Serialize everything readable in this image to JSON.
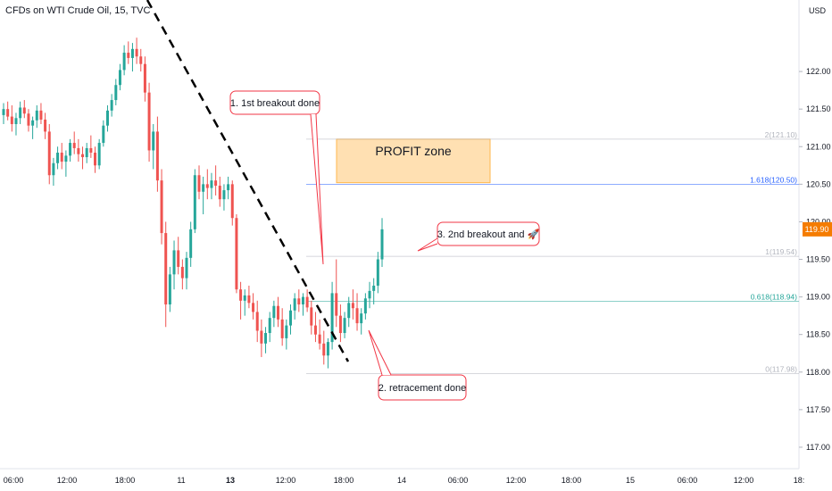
{
  "title": "CFDs on WTI Crude Oil, 15, TVC",
  "chart_data": {
    "type": "candlestick",
    "currency": "USD",
    "ylim": [
      116.75,
      122.5
    ],
    "y_ticks": [
      "122.00",
      "121.50",
      "121.00",
      "120.50",
      "120.00",
      "119.50",
      "119.00",
      "118.50",
      "118.00",
      "117.50",
      "117.00"
    ],
    "x_ticks": [
      "06:00",
      "12:00",
      "18:00",
      "11",
      "13",
      "12:00",
      "18:00",
      "14",
      "06:00",
      "12:00",
      "18:00",
      "15",
      "06:00",
      "12:00",
      "18:"
    ],
    "last_price": "119.90",
    "candles": [
      [
        121.42,
        121.58,
        121.3,
        121.5
      ],
      [
        121.5,
        121.6,
        121.35,
        121.4
      ],
      [
        121.4,
        121.55,
        121.2,
        121.3
      ],
      [
        121.3,
        121.45,
        121.15,
        121.38
      ],
      [
        121.38,
        121.6,
        121.3,
        121.52
      ],
      [
        121.52,
        121.62,
        121.38,
        121.44
      ],
      [
        121.44,
        121.5,
        121.2,
        121.28
      ],
      [
        121.28,
        121.4,
        121.1,
        121.35
      ],
      [
        121.35,
        121.55,
        121.25,
        121.48
      ],
      [
        121.48,
        121.58,
        121.3,
        121.36
      ],
      [
        121.36,
        121.45,
        121.1,
        121.2
      ],
      [
        121.2,
        121.3,
        120.5,
        120.62
      ],
      [
        120.62,
        120.85,
        120.48,
        120.78
      ],
      [
        120.78,
        121.0,
        120.7,
        120.92
      ],
      [
        120.92,
        121.05,
        120.7,
        120.8
      ],
      [
        120.8,
        120.95,
        120.6,
        120.88
      ],
      [
        120.88,
        121.1,
        120.8,
        121.05
      ],
      [
        121.05,
        121.2,
        120.9,
        120.98
      ],
      [
        120.98,
        121.1,
        120.8,
        120.9
      ],
      [
        120.9,
        121.0,
        120.7,
        120.86
      ],
      [
        120.86,
        121.05,
        120.78,
        120.98
      ],
      [
        120.98,
        121.15,
        120.85,
        120.92
      ],
      [
        120.92,
        121.0,
        120.65,
        120.75
      ],
      [
        120.75,
        121.1,
        120.7,
        121.05
      ],
      [
        121.05,
        121.35,
        121.0,
        121.28
      ],
      [
        121.28,
        121.55,
        121.2,
        121.48
      ],
      [
        121.48,
        121.7,
        121.4,
        121.62
      ],
      [
        121.62,
        121.9,
        121.55,
        121.82
      ],
      [
        121.82,
        122.1,
        121.75,
        122.02
      ],
      [
        122.02,
        122.35,
        121.95,
        122.25
      ],
      [
        122.25,
        122.4,
        122.1,
        122.18
      ],
      [
        122.18,
        122.38,
        122.0,
        122.3
      ],
      [
        122.3,
        122.45,
        122.1,
        122.2
      ],
      [
        122.2,
        122.3,
        122.0,
        122.1
      ],
      [
        122.1,
        122.2,
        121.6,
        121.72
      ],
      [
        121.72,
        121.85,
        120.8,
        120.95
      ],
      [
        120.95,
        121.3,
        120.7,
        121.2
      ],
      [
        121.2,
        121.4,
        120.4,
        120.55
      ],
      [
        120.55,
        120.7,
        119.7,
        119.85
      ],
      [
        119.85,
        120.0,
        118.6,
        118.9
      ],
      [
        118.9,
        119.4,
        118.8,
        119.3
      ],
      [
        119.3,
        119.75,
        119.1,
        119.62
      ],
      [
        119.62,
        119.8,
        119.3,
        119.4
      ],
      [
        119.4,
        119.5,
        119.1,
        119.25
      ],
      [
        119.25,
        119.6,
        119.1,
        119.52
      ],
      [
        119.52,
        120.0,
        119.4,
        119.9
      ],
      [
        119.9,
        120.7,
        119.85,
        120.62
      ],
      [
        120.62,
        120.75,
        120.3,
        120.4
      ],
      [
        120.4,
        120.6,
        120.1,
        120.5
      ],
      [
        120.5,
        120.7,
        120.3,
        120.45
      ],
      [
        120.45,
        120.65,
        120.3,
        120.55
      ],
      [
        120.55,
        120.75,
        120.35,
        120.48
      ],
      [
        120.48,
        120.6,
        120.2,
        120.3
      ],
      [
        120.3,
        120.5,
        120.15,
        120.42
      ],
      [
        120.42,
        120.6,
        120.3,
        120.5
      ],
      [
        120.5,
        120.55,
        119.95,
        120.05
      ],
      [
        120.05,
        120.1,
        119.05,
        119.1
      ],
      [
        119.1,
        119.2,
        118.7,
        118.95
      ],
      [
        118.95,
        119.1,
        118.75,
        119.02
      ],
      [
        119.02,
        119.15,
        118.85,
        118.92
      ],
      [
        118.92,
        119.05,
        118.7,
        118.8
      ],
      [
        118.8,
        118.95,
        118.4,
        118.55
      ],
      [
        118.55,
        118.7,
        118.2,
        118.38
      ],
      [
        118.38,
        118.6,
        118.25,
        118.52
      ],
      [
        118.52,
        118.8,
        118.4,
        118.72
      ],
      [
        118.72,
        118.95,
        118.6,
        118.88
      ],
      [
        118.88,
        119.0,
        118.6,
        118.7
      ],
      [
        118.7,
        118.85,
        118.35,
        118.45
      ],
      [
        118.45,
        118.7,
        118.3,
        118.62
      ],
      [
        118.62,
        118.9,
        118.5,
        118.82
      ],
      [
        118.82,
        119.05,
        118.7,
        118.98
      ],
      [
        118.98,
        119.1,
        118.8,
        118.9
      ],
      [
        118.9,
        119.05,
        118.75,
        119.0
      ],
      [
        119.0,
        119.1,
        118.8,
        118.86
      ],
      [
        118.86,
        118.95,
        118.5,
        118.62
      ],
      [
        118.62,
        118.8,
        118.4,
        118.5
      ],
      [
        118.5,
        118.7,
        118.3,
        118.38
      ],
      [
        118.38,
        118.55,
        118.1,
        118.22
      ],
      [
        118.22,
        118.45,
        118.05,
        118.4
      ],
      [
        118.4,
        119.2,
        118.3,
        119.05
      ],
      [
        119.05,
        119.5,
        118.6,
        118.75
      ],
      [
        118.75,
        118.9,
        118.4,
        118.52
      ],
      [
        118.52,
        118.8,
        118.45,
        118.72
      ],
      [
        118.72,
        119.0,
        118.6,
        118.92
      ],
      [
        118.92,
        119.1,
        118.7,
        118.85
      ],
      [
        118.85,
        119.05,
        118.55,
        118.65
      ],
      [
        118.65,
        118.85,
        118.5,
        118.78
      ],
      [
        118.78,
        119.05,
        118.7,
        118.98
      ],
      [
        118.98,
        119.2,
        118.85,
        119.08
      ],
      [
        119.08,
        119.25,
        118.9,
        119.15
      ],
      [
        119.15,
        119.6,
        119.05,
        119.5
      ],
      [
        119.5,
        120.05,
        119.4,
        119.9
      ]
    ],
    "fib_levels": [
      {
        "label": "2(121.10)",
        "value": 121.1,
        "color": "#b2b5be"
      },
      {
        "label": "1.618(120.50)",
        "value": 120.5,
        "color": "#2962ff"
      },
      {
        "label": "1(119.54)",
        "value": 119.54,
        "color": "#b2b5be"
      },
      {
        "label": "0.618(118.94)",
        "value": 118.94,
        "color": "#26a69a"
      },
      {
        "label": "0(117.98)",
        "value": 117.98,
        "color": "#b2b5be"
      }
    ],
    "profit_zone": {
      "label": "PROFIT zone",
      "top": 121.1,
      "bottom": 120.52
    },
    "annotations": [
      "1. 1st breakout done",
      "2. retracement done",
      "3. 2nd breakout and 🚀"
    ],
    "colors": {
      "up": "#26a69a",
      "down": "#ef5350",
      "price_tag": "#f57c00",
      "zone_fill": "#ffe0b2",
      "zone_stroke": "#ffb74d",
      "ann_border": "#f23645"
    }
  }
}
